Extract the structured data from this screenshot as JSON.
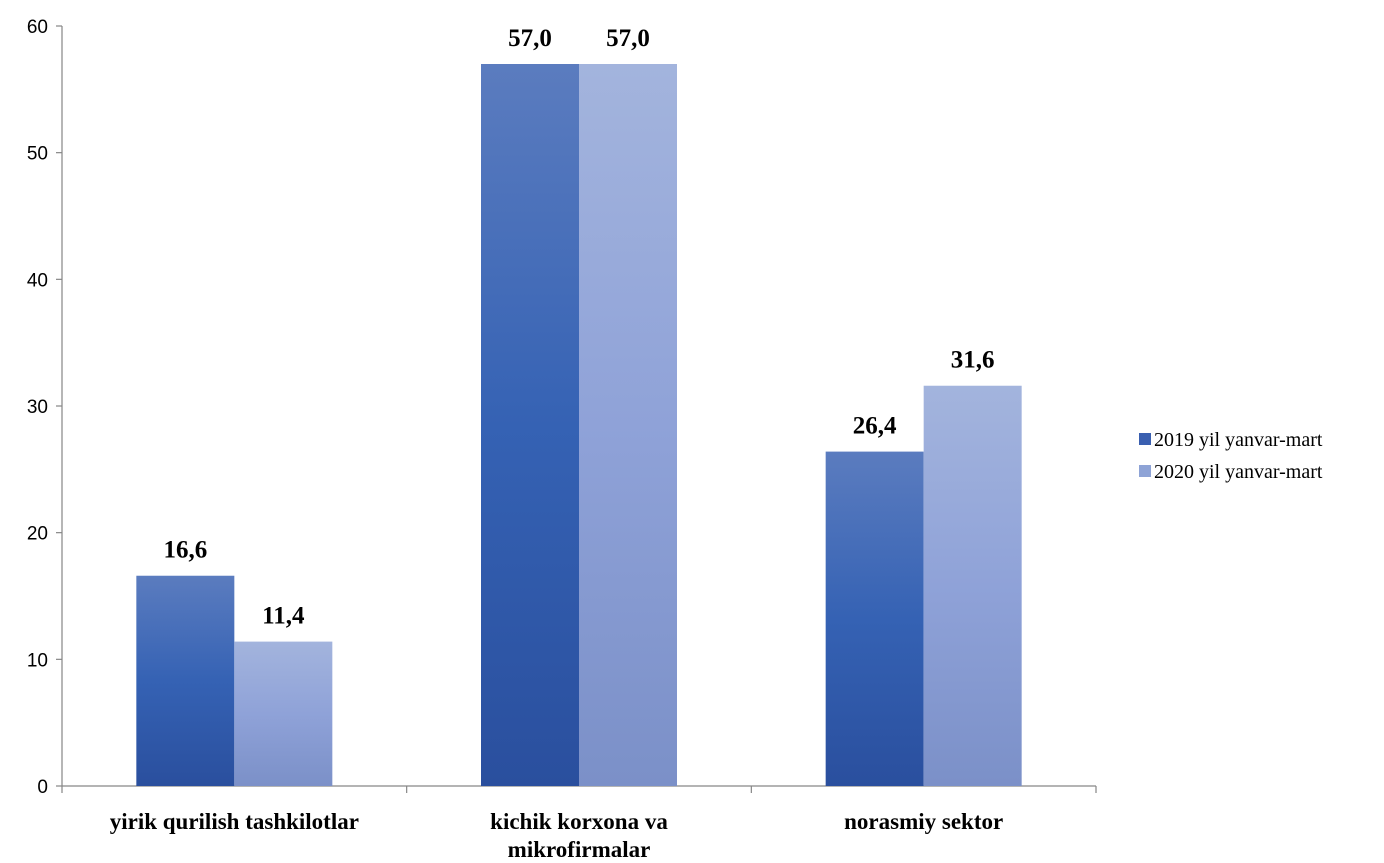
{
  "chart_data": {
    "type": "bar",
    "categories": [
      [
        "yirik qurilish tashkilotlar"
      ],
      [
        "kichik korxona va",
        "mikrofirmalar"
      ],
      [
        "norasmiy sektor"
      ]
    ],
    "series": [
      {
        "name": "2019 yil yanvar-mart",
        "values": [
          16.6,
          57.0,
          26.4
        ],
        "labels": [
          "16,6",
          "57,0",
          "26,4"
        ],
        "color": "#3a5fb0"
      },
      {
        "name": "2020 yil yanvar-mart",
        "values": [
          11.4,
          57.0,
          31.6
        ],
        "labels": [
          "11,4",
          "57,0",
          "31,6"
        ],
        "color": "#8ea3d6"
      }
    ],
    "ylim": [
      0,
      60
    ],
    "yticks": [
      0,
      10,
      20,
      30,
      40,
      50,
      60
    ],
    "grid": false,
    "legend": "right",
    "title": "",
    "xlabel": "",
    "ylabel": ""
  }
}
